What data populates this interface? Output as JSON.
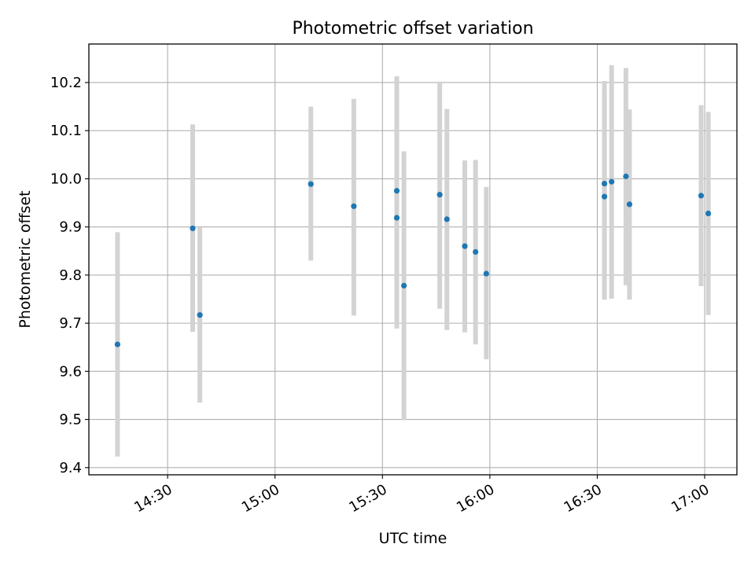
{
  "chart_data": {
    "type": "scatter",
    "title": "Photometric offset variation",
    "xlabel": "UTC time",
    "ylabel": "Photometric offset",
    "x_ticks": [
      "14:30",
      "15:00",
      "15:30",
      "16:00",
      "16:30",
      "17:00"
    ],
    "y_ticks": [
      "9.4",
      "9.5",
      "9.6",
      "9.7",
      "9.8",
      "9.9",
      "10.0",
      "10.1",
      "10.2"
    ],
    "xlim": [
      "14:08",
      "17:09"
    ],
    "ylim": [
      9.385,
      10.28
    ],
    "grid": true,
    "errorbar_color": "#d3d3d3",
    "marker_color": "#1f77b4",
    "points": [
      {
        "t": "14:16",
        "y": 9.656,
        "lo": 9.423,
        "hi": 9.889
      },
      {
        "t": "14:37",
        "y": 9.897,
        "lo": 9.682,
        "hi": 10.113
      },
      {
        "t": "14:39",
        "y": 9.717,
        "lo": 9.535,
        "hi": 9.899
      },
      {
        "t": "15:10",
        "y": 9.989,
        "lo": 9.83,
        "hi": 10.15
      },
      {
        "t": "15:22",
        "y": 9.943,
        "lo": 9.716,
        "hi": 10.166
      },
      {
        "t": "15:34",
        "y": 9.919,
        "lo": 9.689,
        "hi": 10.149
      },
      {
        "t": "15:34",
        "y": 9.975,
        "lo": 9.737,
        "hi": 10.213
      },
      {
        "t": "15:36",
        "y": 9.778,
        "lo": 9.499,
        "hi": 10.057
      },
      {
        "t": "15:46",
        "y": 9.967,
        "lo": 9.73,
        "hi": 10.202
      },
      {
        "t": "15:48",
        "y": 9.916,
        "lo": 9.686,
        "hi": 10.145
      },
      {
        "t": "15:53",
        "y": 9.86,
        "lo": 9.681,
        "hi": 10.038
      },
      {
        "t": "15:56",
        "y": 9.848,
        "lo": 9.656,
        "hi": 10.039
      },
      {
        "t": "15:59",
        "y": 9.803,
        "lo": 9.625,
        "hi": 9.983
      },
      {
        "t": "16:32",
        "y": 9.963,
        "lo": 9.749,
        "hi": 10.179
      },
      {
        "t": "16:32",
        "y": 9.99,
        "lo": 9.776,
        "hi": 10.203
      },
      {
        "t": "16:34",
        "y": 9.994,
        "lo": 9.751,
        "hi": 10.236
      },
      {
        "t": "16:38",
        "y": 10.005,
        "lo": 9.779,
        "hi": 10.23
      },
      {
        "t": "16:39",
        "y": 9.947,
        "lo": 9.749,
        "hi": 10.144
      },
      {
        "t": "16:59",
        "y": 9.965,
        "lo": 9.777,
        "hi": 10.153
      },
      {
        "t": "17:01",
        "y": 9.928,
        "lo": 9.717,
        "hi": 10.139
      }
    ]
  }
}
